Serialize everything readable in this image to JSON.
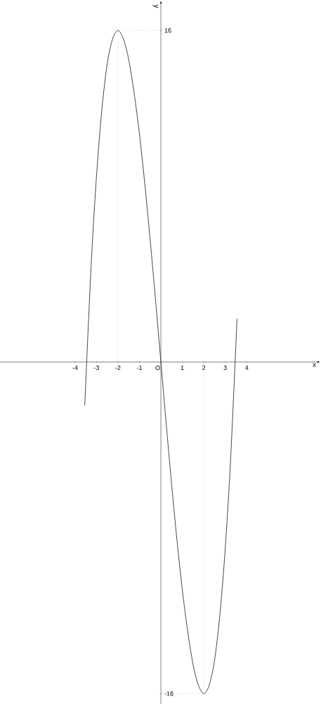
{
  "chart_data": {
    "type": "line",
    "xlabel": "x",
    "ylabel": "y",
    "xlim": [
      -7.5,
      7.3
    ],
    "ylim": [
      -16.5,
      17.3
    ],
    "xticks": [
      -4,
      -3,
      -2,
      -1,
      {
        "value": 0,
        "label": "O"
      },
      1,
      2,
      3,
      4
    ],
    "yticks": [
      -16,
      16
    ],
    "grid": false,
    "marker": "none",
    "series": [
      {
        "color": "#333333",
        "line_style": "solid",
        "x": [
          -3.55,
          -3.25,
          -3.0,
          -2.75,
          -2.5,
          -2.25,
          -2.0,
          -1.75,
          -1.5,
          -1.25,
          -1.0,
          -0.75,
          -0.5,
          -0.25,
          0,
          0.25,
          0.5,
          0.75,
          1.0,
          1.25,
          1.5,
          1.75,
          2.0,
          2.25,
          2.5,
          2.75,
          3.0,
          3.25,
          3.55
        ],
        "values": [
          -2.1,
          4.7,
          9.0,
          12.2,
          14.4,
          15.6,
          16.0,
          15.6,
          14.6,
          13.0,
          11.0,
          8.6,
          5.9,
          3.0,
          0,
          -3.0,
          -5.9,
          -8.6,
          -11.0,
          -13.0,
          -14.6,
          -15.6,
          -16.0,
          -15.6,
          -14.4,
          -12.2,
          -9.0,
          -4.7,
          2.1
        ]
      },
      {
        "color": "#999999",
        "line_style": "dotted",
        "x": [
          -2,
          -2,
          0
        ],
        "values": [
          0,
          16,
          16
        ]
      },
      {
        "color": "#999999",
        "line_style": "dotted",
        "x": [
          2,
          2,
          0
        ],
        "values": [
          0,
          -16,
          -16
        ]
      }
    ]
  }
}
